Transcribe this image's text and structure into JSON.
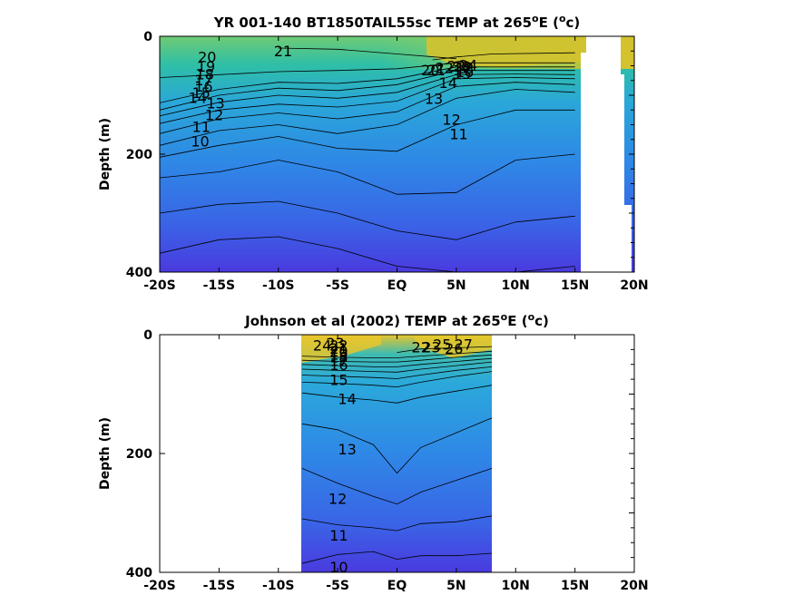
{
  "chart_data": [
    {
      "type": "contour",
      "title_prefix": "YR 001-140 BT1850TAIL55sc TEMP at 265",
      "title_super": "o",
      "title_mid": "E (",
      "title_unit_super": "o",
      "title_suffix": "c)",
      "xlabel": "",
      "ylabel": "Depth (m)",
      "xlim": [
        -20,
        20
      ],
      "ylim": [
        400,
        0
      ],
      "x_ticks": [
        -20,
        -15,
        -10,
        -5,
        0,
        5,
        10,
        15,
        20
      ],
      "x_tick_labels": [
        "-20S",
        "-15S",
        "-10S",
        "-5S",
        "EQ",
        "5N",
        "10N",
        "15N",
        "20N"
      ],
      "y_ticks": [
        0,
        200,
        400
      ],
      "y_tick_labels": [
        "0",
        "200",
        "400"
      ],
      "data_lon_range": [
        -20,
        20
      ],
      "contour_levels": [
        10,
        11,
        12,
        13,
        14,
        15,
        16,
        17,
        18,
        19,
        20,
        21,
        22,
        23,
        24
      ],
      "contours": [
        {
          "level": 10,
          "x": [
            -20,
            -15,
            -10,
            -5,
            0,
            5,
            10,
            15
          ],
          "y": [
            368,
            345,
            340,
            360,
            390,
            400,
            400,
            390
          ]
        },
        {
          "level": 11,
          "x": [
            -20,
            -15,
            -10,
            -5,
            0,
            5,
            10,
            15
          ],
          "y": [
            300,
            285,
            280,
            300,
            330,
            345,
            315,
            305
          ]
        },
        {
          "level": 12,
          "x": [
            -20,
            -15,
            -10,
            -5,
            0,
            5,
            10,
            15
          ],
          "y": [
            240,
            230,
            210,
            230,
            268,
            265,
            210,
            200
          ]
        },
        {
          "level": 13,
          "x": [
            -20,
            -15,
            -10,
            -5,
            0,
            5,
            10,
            15
          ],
          "y": [
            205,
            185,
            170,
            190,
            195,
            150,
            125,
            125
          ]
        },
        {
          "level": 14,
          "x": [
            -20,
            -15,
            -10,
            -5,
            0,
            5,
            10,
            15
          ],
          "y": [
            185,
            160,
            150,
            165,
            150,
            105,
            90,
            95
          ]
        },
        {
          "level": 15,
          "x": [
            -20,
            -15,
            -10,
            -5,
            0,
            5,
            10,
            15
          ],
          "y": [
            165,
            140,
            130,
            140,
            128,
            85,
            78,
            82
          ]
        },
        {
          "level": 16,
          "x": [
            -20,
            -15,
            -10,
            -5,
            0,
            5,
            10,
            15
          ],
          "y": [
            148,
            125,
            115,
            120,
            110,
            72,
            70,
            72
          ]
        },
        {
          "level": 17,
          "x": [
            -20,
            -15,
            -10,
            -5,
            0,
            5,
            10,
            15
          ],
          "y": [
            135,
            112,
            100,
            105,
            95,
            65,
            64,
            65
          ]
        },
        {
          "level": 18,
          "x": [
            -20,
            -15,
            -10,
            -5,
            0,
            5,
            10,
            15
          ],
          "y": [
            125,
            100,
            88,
            92,
            82,
            58,
            58,
            58
          ]
        },
        {
          "level": 19,
          "x": [
            -20,
            -15,
            -10,
            -5,
            0,
            5,
            10,
            15
          ],
          "y": [
            113,
            90,
            78,
            80,
            72,
            52,
            52,
            52
          ]
        },
        {
          "level": 20,
          "x": [
            -20,
            -15,
            -10,
            -5,
            0,
            5,
            10,
            15
          ],
          "y": [
            70,
            65,
            60,
            58,
            55,
            45,
            45,
            45
          ]
        },
        {
          "level": 21,
          "x": [
            -10,
            -5,
            0,
            5
          ],
          "y": [
            20,
            22,
            30,
            38
          ]
        },
        {
          "level": 22,
          "x": [
            3,
            5,
            8,
            15
          ],
          "y": [
            40,
            35,
            30,
            28
          ]
        }
      ],
      "contour_labels": [
        {
          "text": "21",
          "x": -9.6,
          "y": 27
        },
        {
          "text": "20",
          "x": -16,
          "y": 37
        },
        {
          "text": "19",
          "x": -16.1,
          "y": 53
        },
        {
          "text": "18",
          "x": -16.2,
          "y": 66
        },
        {
          "text": "17",
          "x": -16.3,
          "y": 76
        },
        {
          "text": "16",
          "x": -16.3,
          "y": 87
        },
        {
          "text": "15",
          "x": -16.5,
          "y": 98
        },
        {
          "text": "14",
          "x": -16.8,
          "y": 106
        },
        {
          "text": "13",
          "x": -15.3,
          "y": 115
        },
        {
          "text": "12",
          "x": -15.4,
          "y": 135
        },
        {
          "text": "11",
          "x": -16.5,
          "y": 155
        },
        {
          "text": "10",
          "x": -16.6,
          "y": 180
        },
        {
          "text": "14",
          "x": 4.3,
          "y": 81
        },
        {
          "text": "13",
          "x": 3.1,
          "y": 108
        },
        {
          "text": "12",
          "x": 4.6,
          "y": 143
        },
        {
          "text": "11",
          "x": 5.2,
          "y": 168
        },
        {
          "text": "20",
          "x": 2.8,
          "y": 59
        },
        {
          "text": "21",
          "x": 3.3,
          "y": 59
        },
        {
          "text": "22",
          "x": 4.0,
          "y": 55
        },
        {
          "text": "23",
          "x": 5.0,
          "y": 52
        },
        {
          "text": "24",
          "x": 6.0,
          "y": 51
        },
        {
          "text": "15",
          "x": 5.5,
          "y": 65
        },
        {
          "text": "16",
          "x": 5.7,
          "y": 62
        },
        {
          "text": "17",
          "x": 5.5,
          "y": 59
        },
        {
          "text": "18",
          "x": 5.7,
          "y": 56
        },
        {
          "text": "19",
          "x": 5.5,
          "y": 53
        }
      ],
      "colormap": [
        "#4a3adf",
        "#2f6be8",
        "#2f95e6",
        "#30b3c8",
        "#46c29a",
        "#8dcc5c",
        "#d2c12e",
        "#f4d327"
      ],
      "missing_color": "#ffffff"
    },
    {
      "type": "contour",
      "title_prefix": "Johnson et al (2002) TEMP at 265",
      "title_super": "o",
      "title_mid": "E (",
      "title_unit_super": "o",
      "title_suffix": "c)",
      "xlabel": "",
      "ylabel": "Depth (m)",
      "xlim": [
        -20,
        20
      ],
      "ylim": [
        400,
        0
      ],
      "x_ticks": [
        -20,
        -15,
        -10,
        -5,
        0,
        5,
        10,
        15,
        20
      ],
      "x_tick_labels": [
        "-20S",
        "-15S",
        "-10S",
        "-5S",
        "EQ",
        "5N",
        "10N",
        "15N",
        "20N"
      ],
      "y_ticks": [
        0,
        200,
        400
      ],
      "y_tick_labels": [
        "0",
        "200",
        "400"
      ],
      "data_lon_range": [
        -8,
        8
      ],
      "contour_levels": [
        10,
        11,
        12,
        13,
        14,
        15,
        16,
        17,
        18,
        19,
        20,
        21,
        22,
        23,
        24,
        25,
        26
      ],
      "contours": [
        {
          "level": 10,
          "x": [
            -8,
            -5,
            -2,
            0,
            2,
            5,
            8
          ],
          "y": [
            385,
            370,
            365,
            378,
            372,
            372,
            368
          ]
        },
        {
          "level": 11,
          "x": [
            -8,
            -5,
            -2,
            0,
            2,
            5,
            8
          ],
          "y": [
            310,
            320,
            325,
            330,
            318,
            315,
            305
          ]
        },
        {
          "level": 12,
          "x": [
            -8,
            -5,
            -2,
            0,
            2,
            5,
            8
          ],
          "y": [
            225,
            250,
            272,
            285,
            265,
            245,
            225
          ]
        },
        {
          "level": 13,
          "x": [
            -8,
            -5,
            -2,
            0,
            2,
            5,
            8
          ],
          "y": [
            150,
            160,
            185,
            233,
            190,
            165,
            140
          ]
        },
        {
          "level": 14,
          "x": [
            -8,
            -5,
            -2,
            0,
            2,
            5,
            8
          ],
          "y": [
            98,
            105,
            110,
            115,
            105,
            95,
            85
          ]
        },
        {
          "level": 15,
          "x": [
            -8,
            -5,
            -2,
            0,
            2,
            5,
            8
          ],
          "y": [
            80,
            82,
            85,
            88,
            80,
            70,
            62
          ]
        },
        {
          "level": 16,
          "x": [
            -8,
            -5,
            -2,
            0,
            2,
            5,
            8
          ],
          "y": [
            68,
            70,
            72,
            74,
            68,
            60,
            54
          ]
        },
        {
          "level": 17,
          "x": [
            -8,
            -5,
            -2,
            0,
            2,
            5,
            8
          ],
          "y": [
            58,
            60,
            62,
            63,
            58,
            52,
            46
          ]
        },
        {
          "level": 18,
          "x": [
            -8,
            -5,
            -2,
            0,
            2,
            5,
            8
          ],
          "y": [
            50,
            52,
            54,
            54,
            50,
            45,
            40
          ]
        },
        {
          "level": 19,
          "x": [
            -8,
            -5,
            -2,
            0,
            2,
            5,
            8
          ],
          "y": [
            43,
            45,
            46,
            46,
            43,
            38,
            34
          ]
        },
        {
          "level": 20,
          "x": [
            -8,
            -5,
            -2,
            0,
            2,
            5,
            8
          ],
          "y": [
            36,
            38,
            39,
            39,
            36,
            32,
            28
          ]
        },
        {
          "level": 22,
          "x": [
            0,
            2,
            5,
            8
          ],
          "y": [
            30,
            24,
            22,
            20
          ]
        }
      ],
      "contour_labels": [
        {
          "text": "24",
          "x": -6.3,
          "y": 20
        },
        {
          "text": "23",
          "x": -5.2,
          "y": 16
        },
        {
          "text": "22",
          "x": -4.9,
          "y": 20
        },
        {
          "text": "21",
          "x": -4.9,
          "y": 25
        },
        {
          "text": "20",
          "x": -4.9,
          "y": 30
        },
        {
          "text": "19",
          "x": -4.9,
          "y": 35
        },
        {
          "text": "18",
          "x": -4.9,
          "y": 40
        },
        {
          "text": "17",
          "x": -4.9,
          "y": 46
        },
        {
          "text": "16",
          "x": -4.9,
          "y": 53
        },
        {
          "text": "15",
          "x": -4.9,
          "y": 78
        },
        {
          "text": "14",
          "x": -4.2,
          "y": 110
        },
        {
          "text": "13",
          "x": -4.2,
          "y": 195
        },
        {
          "text": "12",
          "x": -5.0,
          "y": 278
        },
        {
          "text": "11",
          "x": -4.9,
          "y": 340
        },
        {
          "text": "10",
          "x": -4.9,
          "y": 393
        },
        {
          "text": "22",
          "x": 2.0,
          "y": 23
        },
        {
          "text": "23",
          "x": 2.9,
          "y": 23
        },
        {
          "text": "25",
          "x": 3.8,
          "y": 18
        },
        {
          "text": "26",
          "x": 4.8,
          "y": 25
        },
        {
          "text": "27",
          "x": 5.6,
          "y": 18
        }
      ],
      "colormap": [
        "#4a3adf",
        "#2f6be8",
        "#2f95e6",
        "#30b3c8",
        "#46c29a",
        "#8dcc5c",
        "#d2c12e",
        "#f4d327"
      ],
      "missing_color": "#ffffff"
    }
  ]
}
